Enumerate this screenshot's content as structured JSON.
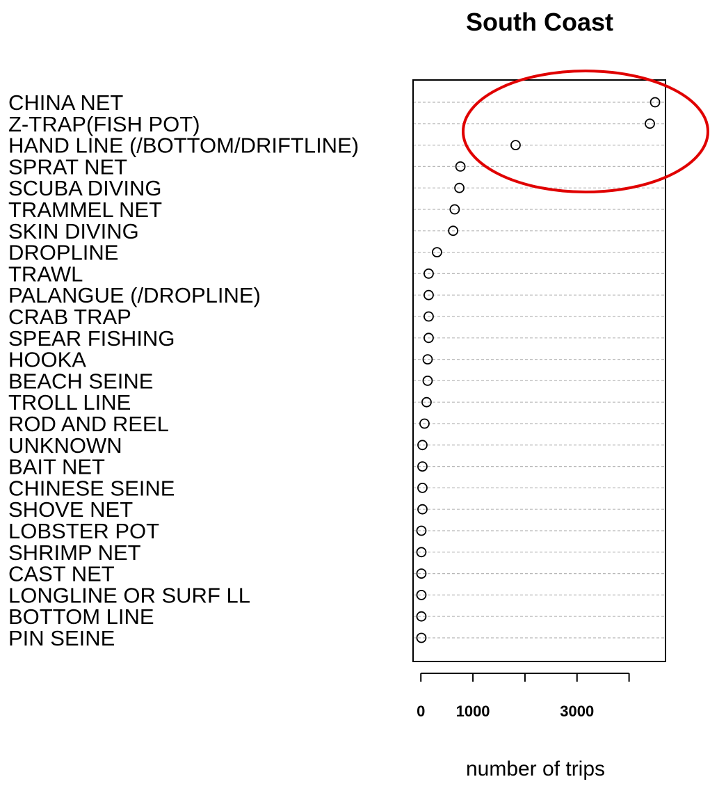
{
  "chart_data": {
    "type": "dotplot",
    "title": "South Coast",
    "xlabel": "number of trips",
    "ylabel": "",
    "xlim": [
      -150,
      4700
    ],
    "x_ticks": [
      0,
      1000,
      2000,
      3000,
      4000
    ],
    "x_tick_labels": [
      "0",
      "1000",
      "",
      "3000",
      ""
    ],
    "grid": "horizontal dashed",
    "highlight": {
      "shape": "ellipse",
      "color": "#e00000",
      "categories": [
        "CHINA NET",
        "Z-TRAP(FISH POT)",
        "HAND LINE (/BOTTOM/DRIFTLINE)"
      ]
    },
    "categories": [
      "CHINA NET",
      "Z-TRAP(FISH POT)",
      "HAND LINE (/BOTTOM/DRIFTLINE)",
      "SPRAT NET",
      "SCUBA DIVING",
      "TRAMMEL NET",
      "SKIN DIVING",
      "DROPLINE",
      "TRAWL",
      "PALANGUE (/DROPLINE)",
      "CRAB TRAP",
      "SPEAR FISHING",
      "HOOKA",
      "BEACH SEINE",
      "TROLL LINE",
      "ROD AND REEL",
      "UNKNOWN",
      "BAIT NET",
      "CHINESE SEINE",
      "SHOVE NET",
      "LOBSTER POT",
      "SHRIMP NET",
      "CAST NET",
      "LONGLINE OR SURF LL",
      "BOTTOM LINE",
      "PIN SEINE"
    ],
    "values": [
      4500,
      4400,
      1820,
      760,
      740,
      650,
      620,
      310,
      150,
      150,
      150,
      150,
      130,
      130,
      110,
      70,
      30,
      30,
      30,
      30,
      10,
      10,
      10,
      10,
      10,
      10
    ]
  }
}
